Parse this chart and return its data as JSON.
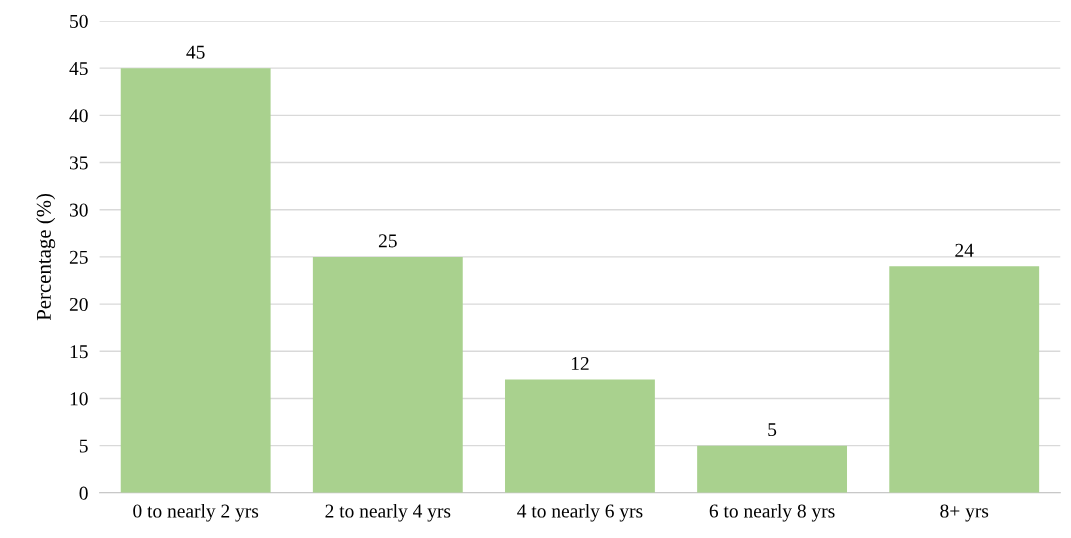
{
  "chart_data": {
    "type": "bar",
    "ylabel": "Percentage (%)",
    "categories": [
      "0 to nearly 2 yrs",
      "2 to nearly 4 yrs",
      "4 to nearly 6 yrs",
      "6 to nearly 8 yrs",
      "8+ yrs"
    ],
    "values": [
      45,
      25,
      12,
      5,
      24
    ],
    "color": "#a9d18e",
    "ylim": [
      0,
      50
    ],
    "yticks": [
      0,
      5,
      10,
      15,
      20,
      25,
      30,
      35,
      40,
      45,
      50
    ],
    "grid": "y",
    "data_labels": true
  }
}
